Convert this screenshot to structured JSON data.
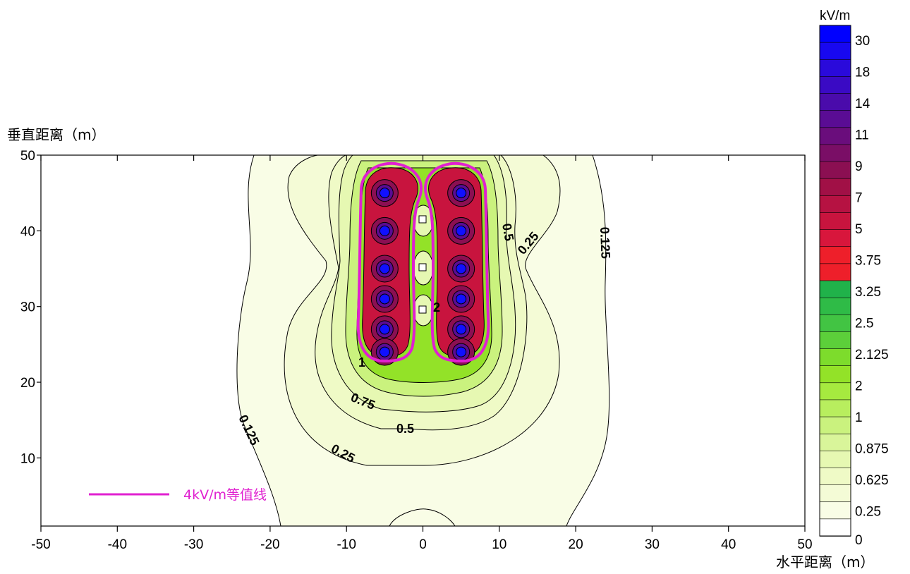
{
  "chart_data": {
    "type": "contour",
    "xlabel": "水平距离（m）",
    "ylabel": "垂直距离（m）",
    "xlim": [
      -50,
      50
    ],
    "ylim": [
      1,
      50
    ],
    "x_ticks": [
      "-50",
      "-40",
      "-30",
      "-20",
      "-10",
      "0",
      "10",
      "20",
      "30",
      "40",
      "50"
    ],
    "y_ticks": [
      "50",
      "40",
      "30",
      "20",
      "10"
    ],
    "colorbar": {
      "unit": "kV/m",
      "levels": [
        "0",
        "0.25",
        "0.625",
        "0.875",
        "1",
        "2",
        "2.125",
        "2.5",
        "3.25",
        "3.75",
        "5",
        "7",
        "9",
        "11",
        "14",
        "18",
        "30"
      ],
      "colors": [
        "#ffffff",
        "#f9fde6",
        "#f4fbd6",
        "#effac6",
        "#e6f8b2",
        "#d9f59a",
        "#caf27e",
        "#b8ee5e",
        "#a6ea3f",
        "#93e228",
        "#7ddc2c",
        "#5ccf3a",
        "#42c443",
        "#2fbb47",
        "#20b24a",
        "#ee1f2a",
        "#ee1f2a",
        "#d8163c",
        "#c8143e",
        "#b61242",
        "#a11046",
        "#8b0f52",
        "#7a0e66",
        "#6a0d7c",
        "#5a0c94",
        "#4a0bab",
        "#3a0ac4",
        "#2a0adb",
        "#1808f0",
        "#0000ff"
      ]
    },
    "contour_labels": [
      "0.125",
      "0.125",
      "0.25",
      "0.25",
      "0.5",
      "0.75",
      "0.5",
      "1",
      "2"
    ],
    "sources": {
      "left_column_x": -5,
      "right_column_x": 5,
      "y": [
        45,
        40,
        35,
        31,
        27,
        24
      ]
    },
    "legend": {
      "label": "4kV/m等值线",
      "color": "#e020d0"
    }
  }
}
